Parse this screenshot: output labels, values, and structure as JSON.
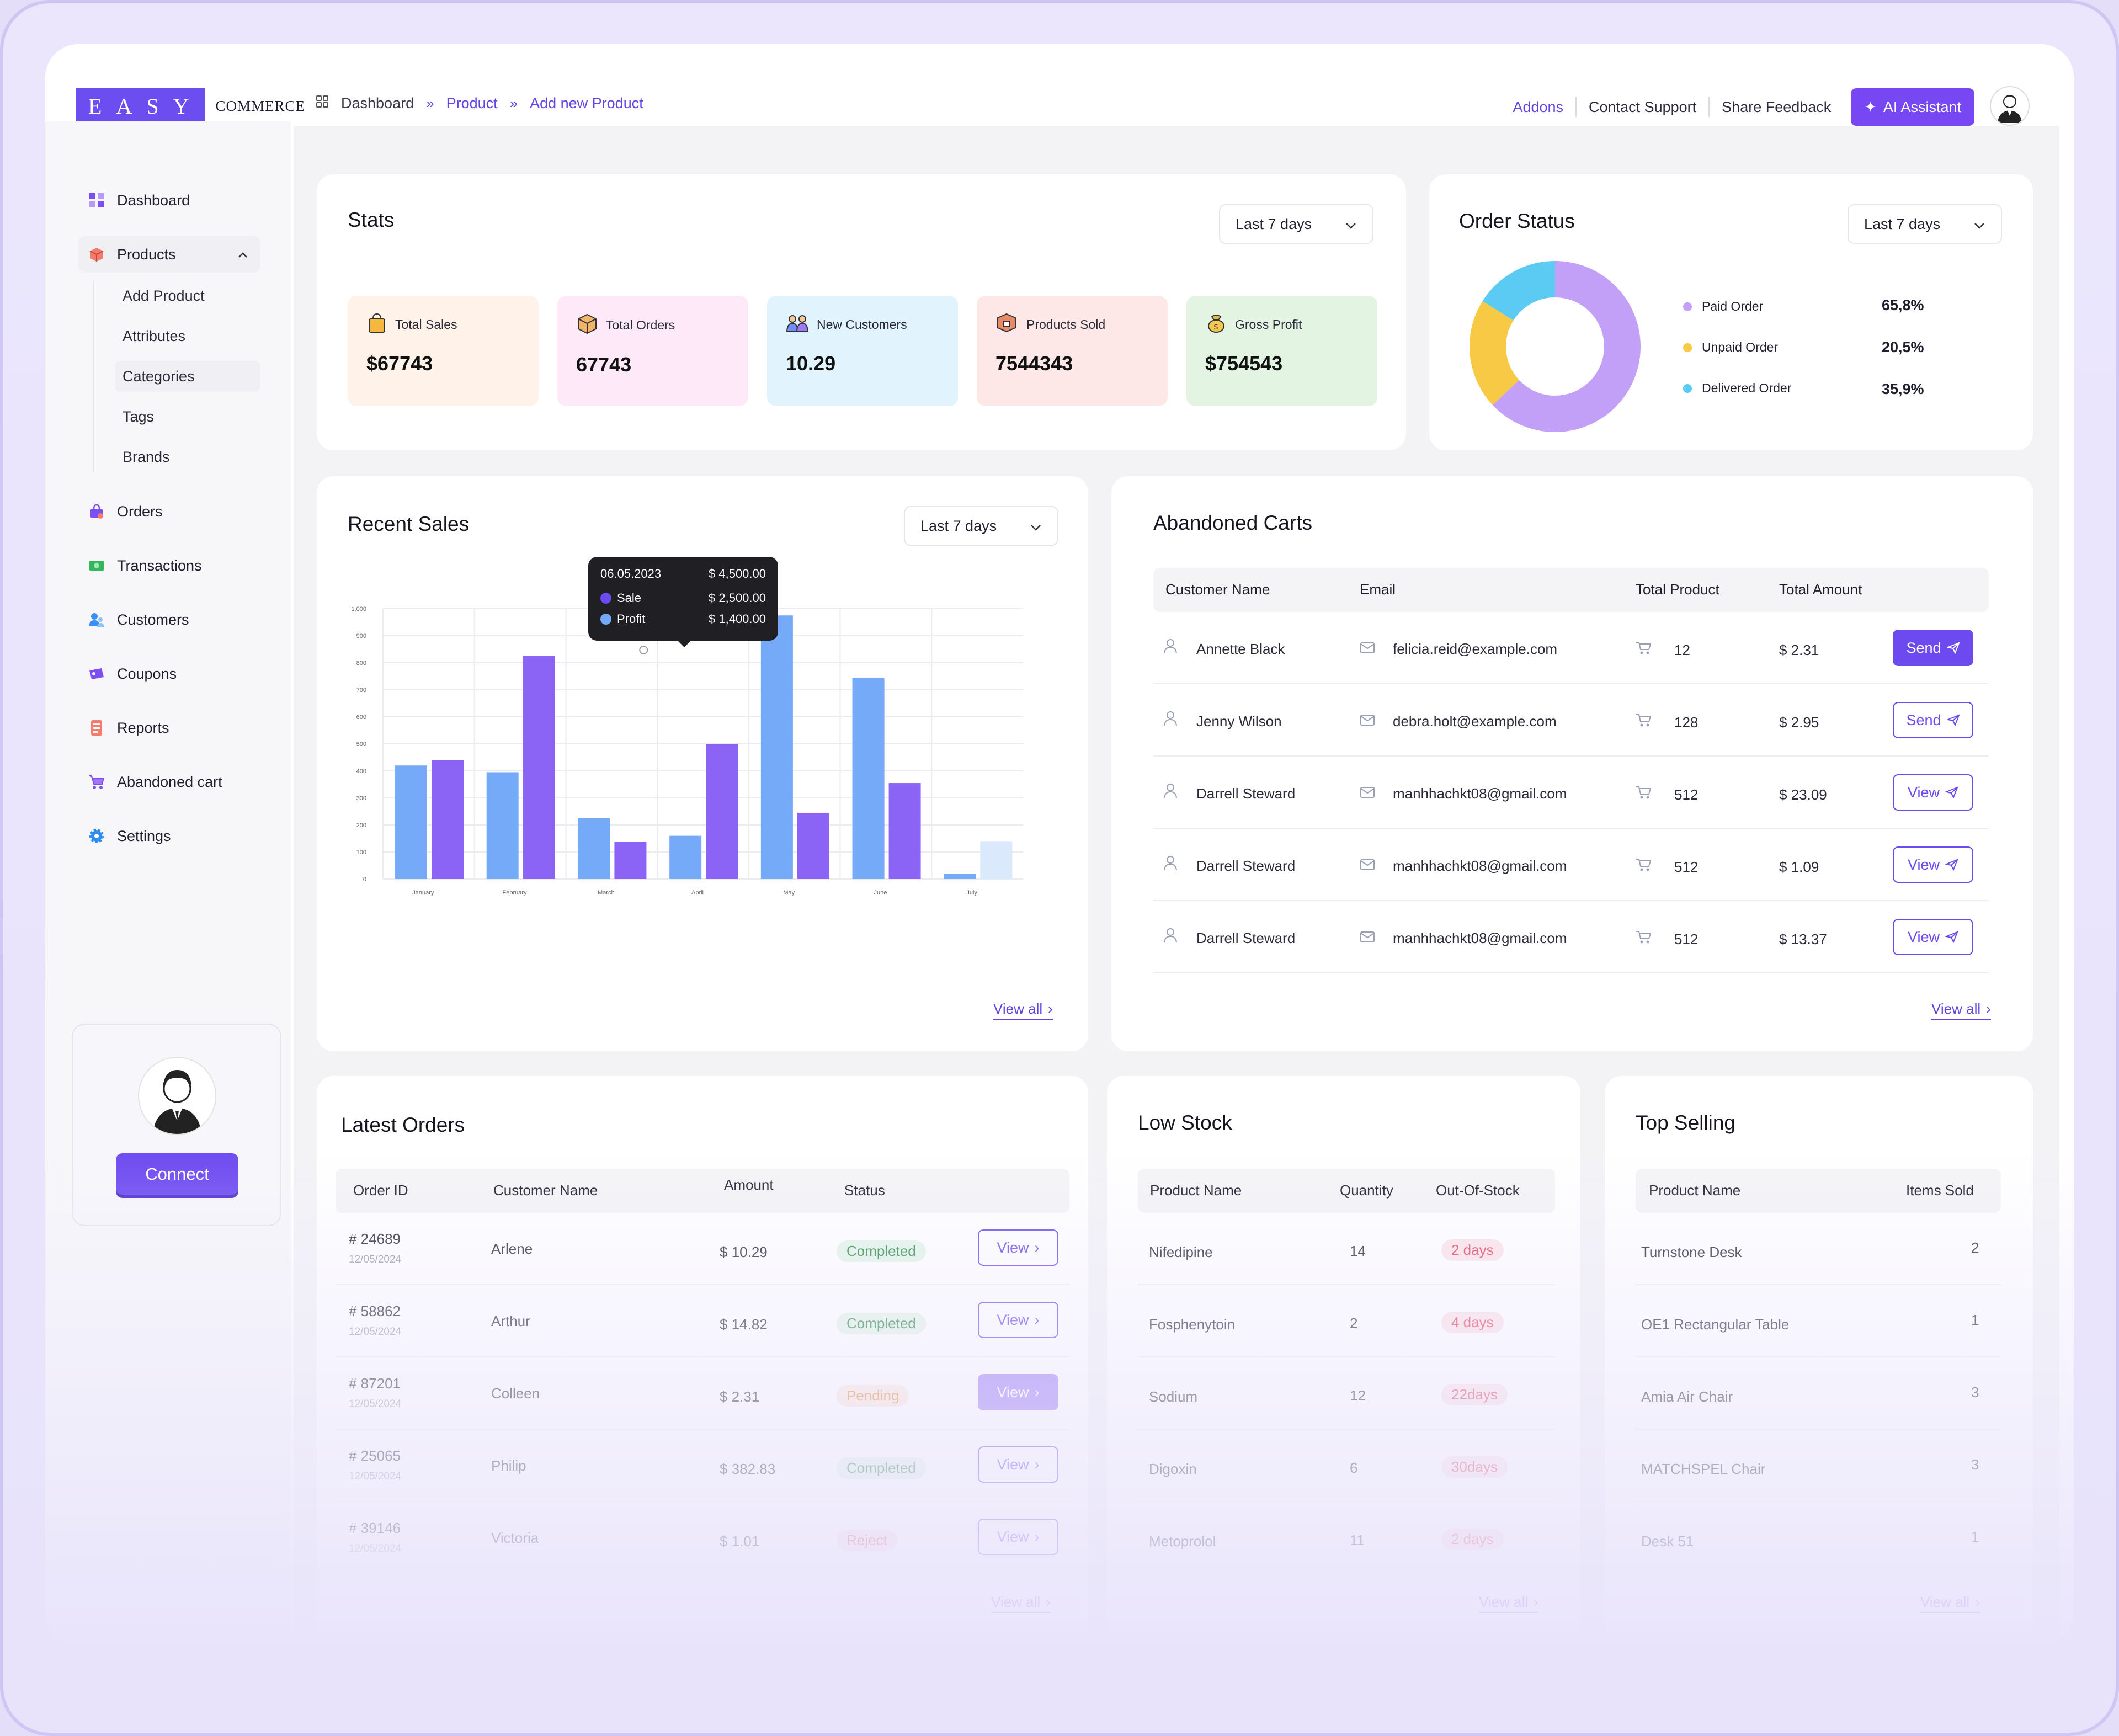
{
  "brand": {
    "logo_box": "EASY",
    "logo_text": "COMMERCE"
  },
  "breadcrumb": {
    "item1": "Dashboard",
    "item2": "Product",
    "item3": "Add new Product"
  },
  "header": {
    "addons": "Addons",
    "contact": "Contact Support",
    "feedback": "Share Feedback",
    "ai": "AI Assistant"
  },
  "sidebar": {
    "items": [
      {
        "label": "Dashboard",
        "icon": "dashboard-icon"
      },
      {
        "label": "Products",
        "icon": "box-icon"
      },
      {
        "label": "Orders",
        "icon": "bag-icon"
      },
      {
        "label": "Transactions",
        "icon": "cash-icon"
      },
      {
        "label": "Customers",
        "icon": "users-icon"
      },
      {
        "label": "Coupons",
        "icon": "ticket-icon"
      },
      {
        "label": "Reports",
        "icon": "report-icon"
      },
      {
        "label": "Abandoned cart",
        "icon": "cart-icon"
      },
      {
        "label": "Settings",
        "icon": "gear-icon"
      }
    ],
    "sub": [
      "Add Product",
      "Attributes",
      "Categories",
      "Tags",
      "Brands"
    ],
    "connect": "Connect"
  },
  "stats": {
    "title": "Stats",
    "range": "Last 7 days",
    "cards": [
      {
        "label": "Total Sales",
        "value": "$67743",
        "bg": "#fff3e9"
      },
      {
        "label": "Total Orders",
        "value": "67743",
        "bg": "#fde9f8"
      },
      {
        "label": "New Customers",
        "value": "10.29",
        "bg": "#e1f3fc"
      },
      {
        "label": "Products Sold",
        "value": "7544343",
        "bg": "#fde8e7"
      },
      {
        "label": "Gross Profit",
        "value": "$754543",
        "bg": "#e3f4e3"
      }
    ]
  },
  "order_status": {
    "title": "Order Status",
    "range": "Last 7 days",
    "items": [
      {
        "label": "Paid Order",
        "value": "65,8%",
        "color": "#c3a0f7"
      },
      {
        "label": "Unpaid Order",
        "value": "20,5%",
        "color": "#f8c944"
      },
      {
        "label": "Delivered Order",
        "value": "35,9%",
        "color": "#5ccbf4"
      }
    ]
  },
  "recent_sales": {
    "title": "Recent Sales",
    "range": "Last 7 days",
    "view_all": "View all",
    "tooltip": {
      "date": "06.05.2023",
      "total": "$ 4,500.00",
      "sale_label": "Sale",
      "sale": "$ 2,500.00",
      "profit_label": "Profit",
      "profit": "$ 1,400.00"
    }
  },
  "chart_data": {
    "type": "bar",
    "categories": [
      "January",
      "February",
      "March",
      "April",
      "May",
      "June",
      "July"
    ],
    "series": [
      {
        "values": [
          420,
          395,
          225,
          160,
          975,
          745,
          20
        ],
        "color": "#75aaf8"
      },
      {
        "values": [
          440,
          825,
          138,
          500,
          245,
          355,
          140
        ],
        "color": "#8c64f5"
      }
    ],
    "ylim": [
      0,
      1000
    ],
    "yticks": [
      "0",
      "100",
      "200",
      "300",
      "400",
      "500",
      "600",
      "700",
      "800",
      "900",
      "1,000"
    ],
    "grid": true
  },
  "abandoned": {
    "title": "Abandoned Carts",
    "headers": [
      "Customer Name",
      "Email",
      "Total Product",
      "Total Amount"
    ],
    "rows": [
      {
        "name": "Annette Black",
        "email": "felicia.reid@example.com",
        "qty": "12",
        "amount": "$ 2.31",
        "action": "Send",
        "filled": true
      },
      {
        "name": "Jenny Wilson",
        "email": "debra.holt@example.com",
        "qty": "128",
        "amount": "$ 2.95",
        "action": "Send",
        "filled": false
      },
      {
        "name": "Darrell Steward",
        "email": "manhhachkt08@gmail.com",
        "qty": "512",
        "amount": "$ 23.09",
        "action": "View",
        "filled": false
      },
      {
        "name": "Darrell Steward",
        "email": "manhhachkt08@gmail.com",
        "qty": "512",
        "amount": "$ 1.09",
        "action": "View",
        "filled": false
      },
      {
        "name": "Darrell Steward",
        "email": "manhhachkt08@gmail.com",
        "qty": "512",
        "amount": "$ 13.37",
        "action": "View",
        "filled": false
      }
    ],
    "view_all": "View all"
  },
  "latest_orders": {
    "title": "Latest Orders",
    "headers": [
      "Order ID",
      "Customer Name",
      "Amount",
      "Status"
    ],
    "rows": [
      {
        "id": "# 24689",
        "date": "12/05/2024",
        "name": "Arlene",
        "amount": "$ 10.29",
        "status": "Completed",
        "kind": "green",
        "action": "View",
        "filled": false
      },
      {
        "id": "# 58862",
        "date": "12/05/2024",
        "name": "Arthur",
        "amount": "$ 14.82",
        "status": "Completed",
        "kind": "green",
        "action": "View",
        "filled": false
      },
      {
        "id": "# 87201",
        "date": "12/05/2024",
        "name": "Colleen",
        "amount": "$ 2.31",
        "status": "Pending",
        "kind": "orange",
        "action": "View",
        "filled": true
      },
      {
        "id": "# 25065",
        "date": "12/05/2024",
        "name": "Philip",
        "amount": "$ 382.83",
        "status": "Completed",
        "kind": "green",
        "action": "View",
        "filled": false
      },
      {
        "id": "# 39146",
        "date": "12/05/2024",
        "name": "Victoria",
        "amount": "$ 1.01",
        "status": "Reject",
        "kind": "red",
        "action": "View",
        "filled": false
      }
    ],
    "view_all": "View all"
  },
  "low_stock": {
    "title": "Low Stock",
    "headers": [
      "Product Name",
      "Quantity",
      "Out-Of-Stock"
    ],
    "rows": [
      {
        "name": "Nifedipine",
        "qty": "14",
        "out": "2 days"
      },
      {
        "name": "Fosphenytoin",
        "qty": "2",
        "out": "4 days"
      },
      {
        "name": "Sodium",
        "qty": "12",
        "out": "22days"
      },
      {
        "name": "Digoxin",
        "qty": "6",
        "out": "30days"
      },
      {
        "name": "Metoprolol",
        "qty": "11",
        "out": "2 days"
      }
    ],
    "view_all": "View all"
  },
  "top_selling": {
    "title": "Top Selling",
    "headers": [
      "Product Name",
      "Items Sold"
    ],
    "rows": [
      {
        "name": "Turnstone Desk",
        "sold": "2"
      },
      {
        "name": "OE1 Rectangular Table",
        "sold": "1"
      },
      {
        "name": "Amia Air Chair",
        "sold": "3"
      },
      {
        "name": "MATCHSPEL Chair",
        "sold": "3"
      },
      {
        "name": "Desk 51",
        "sold": "1"
      }
    ],
    "view_all": "View all"
  }
}
